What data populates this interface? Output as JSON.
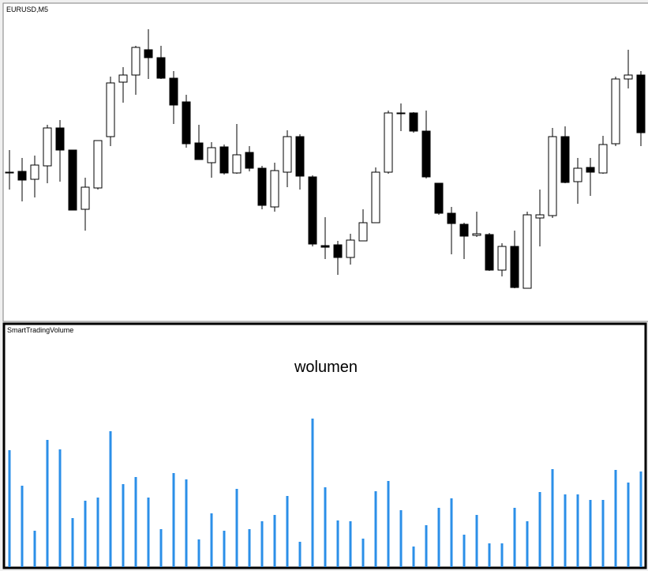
{
  "chart_data": [
    {
      "type": "candlestick",
      "title": "EURUSD,M5",
      "up_color": "#ffffff",
      "down_color": "#000000",
      "ylim": [
        -5,
        395
      ],
      "open": [
        182,
        183,
        173,
        190,
        238,
        210,
        135,
        162,
        227,
        296,
        305,
        337,
        327,
        301,
        271,
        219,
        194,
        214,
        181,
        207,
        187,
        138,
        182,
        227,
        176,
        89,
        90,
        74,
        95,
        118,
        182,
        257,
        257,
        234,
        168,
        130,
        116,
        102,
        103,
        58,
        88,
        35,
        124,
        127,
        227,
        170,
        188,
        181,
        218,
        300,
        305
      ],
      "close": [
        182,
        172,
        191,
        238,
        210,
        134,
        163,
        222,
        295,
        305,
        340,
        327,
        301,
        267,
        218,
        198,
        213,
        181,
        204,
        187,
        140,
        184,
        227,
        177,
        91,
        87,
        74,
        96,
        118,
        182,
        257,
        257,
        234,
        176,
        130,
        117,
        101,
        104,
        58,
        88,
        36,
        128,
        128,
        227,
        169,
        187,
        182,
        217,
        300,
        305,
        232
      ],
      "high": [
        210,
        200,
        203,
        242,
        248,
        210,
        175,
        222,
        303,
        315,
        342,
        363,
        342,
        310,
        280,
        242,
        220,
        217,
        243,
        215,
        190,
        194,
        235,
        230,
        178,
        125,
        95,
        104,
        135,
        188,
        260,
        269,
        258,
        260,
        168,
        138,
        118,
        132,
        105,
        92,
        108,
        132,
        160,
        238,
        240,
        200,
        200,
        228,
        303,
        337,
        310
      ],
      "low": [
        160,
        145,
        150,
        168,
        170,
        134,
        108,
        160,
        215,
        270,
        280,
        300,
        300,
        243,
        213,
        198,
        175,
        179,
        180,
        183,
        135,
        132,
        163,
        160,
        88,
        72,
        52,
        65,
        95,
        118,
        180,
        234,
        232,
        174,
        128,
        78,
        72,
        100,
        57,
        50,
        35,
        35,
        88,
        124,
        168,
        142,
        152,
        180,
        215,
        288,
        215
      ]
    },
    {
      "type": "bar",
      "title": "SmartTradingVolume",
      "annotation": "wolumen",
      "color": "#2b8fe8",
      "ylim": [
        0,
        305
      ],
      "values": [
        148,
        103,
        46,
        161,
        149,
        62,
        84,
        88,
        172,
        105,
        114,
        88,
        48,
        119,
        111,
        35,
        68,
        46,
        99,
        48,
        58,
        66,
        90,
        32,
        188,
        101,
        59,
        58,
        36,
        96,
        109,
        72,
        26,
        53,
        75,
        87,
        41,
        66,
        30,
        30,
        75,
        58,
        95,
        124,
        92,
        92,
        85,
        85,
        123,
        107,
        121
      ]
    }
  ]
}
